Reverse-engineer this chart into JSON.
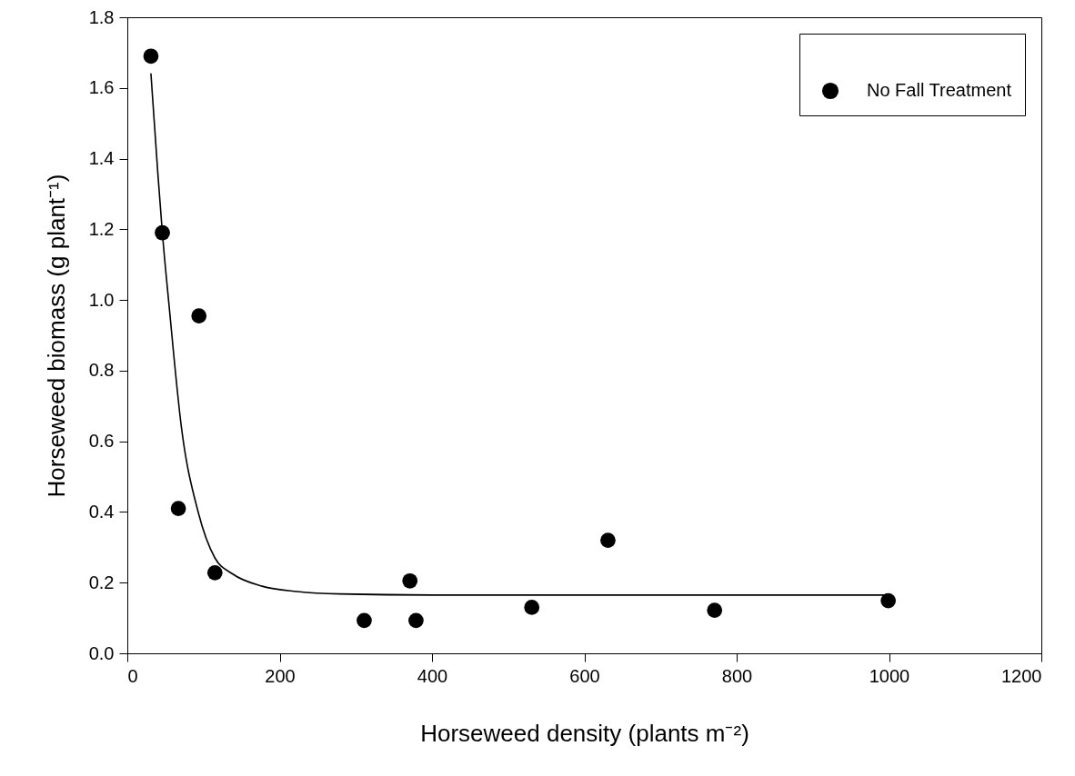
{
  "chart_data": {
    "type": "scatter",
    "xlabel": "Horseweed density (plants m⁻²)",
    "ylabel": "Horseweed biomass (g plant⁻¹)",
    "xlim": [
      0,
      1200
    ],
    "xticks": [
      0,
      200,
      400,
      600,
      800,
      {
        "value": 1000,
        "label": "1000"
      },
      {
        "value": 1200,
        "label": "1200"
      }
    ],
    "ylim": [
      0,
      1.8
    ],
    "yticks": [
      {
        "value": 0,
        "label": "0.0"
      },
      0.2,
      0.4,
      0.6,
      0.8,
      {
        "value": 1,
        "label": "1.0"
      },
      1.2,
      1.4,
      1.6,
      1.8
    ],
    "grid": false,
    "legend": "top right",
    "marker": "circle",
    "series": [
      {
        "type": "line",
        "color": "#000000",
        "line_style": "solid",
        "marker": "none",
        "x": [
          31,
          40,
          46,
          55,
          71,
          93,
          115,
          138,
          177,
          223,
          279,
          400,
          600,
          800,
          1000
        ],
        "values": [
          1.64,
          1.36,
          1.19,
          0.98,
          0.64,
          0.4,
          0.27,
          0.225,
          0.19,
          0.175,
          0.168,
          0.165,
          0.165,
          0.165,
          0.165
        ]
      },
      {
        "name": "No Fall Treatment",
        "color": "#000000",
        "x": [
          31,
          46,
          67,
          94,
          115,
          311,
          371,
          379,
          531,
          631,
          771,
          999
        ],
        "values": [
          1.69,
          1.19,
          0.41,
          0.955,
          0.228,
          0.093,
          0.205,
          0.093,
          0.13,
          0.32,
          0.122,
          0.149
        ]
      }
    ]
  }
}
